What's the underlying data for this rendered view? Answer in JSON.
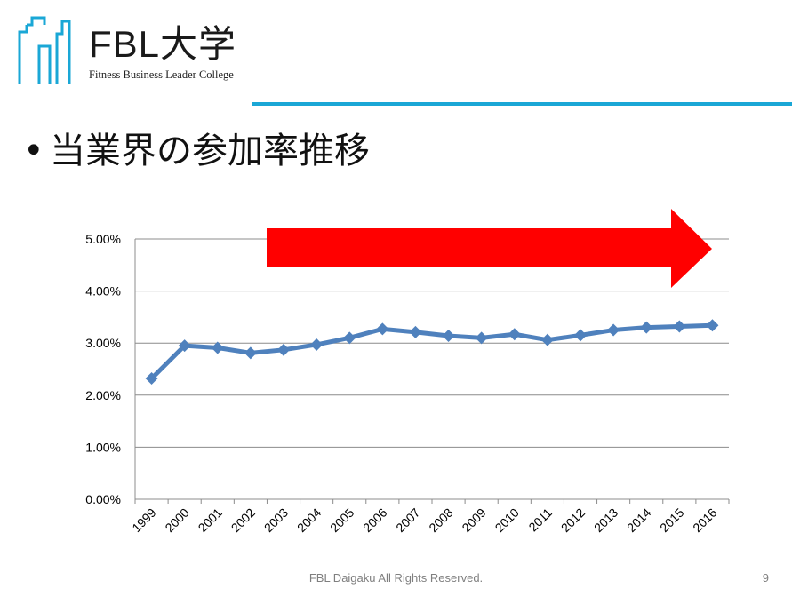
{
  "header": {
    "brand_name": "FBL大学",
    "brand_sub": "Fitness Business Leader College",
    "accent_color": "#1aa7d6"
  },
  "slide": {
    "bullet": "•",
    "title": "当業界の参加率推移"
  },
  "chart_data": {
    "type": "line",
    "categories": [
      "1999",
      "2000",
      "2001",
      "2002",
      "2003",
      "2004",
      "2005",
      "2006",
      "2007",
      "2008",
      "2009",
      "2010",
      "2011",
      "2012",
      "2013",
      "2014",
      "2015",
      "2016"
    ],
    "series": [
      {
        "values": [
          2.32,
          2.95,
          2.91,
          2.81,
          2.87,
          2.97,
          3.1,
          3.27,
          3.21,
          3.14,
          3.1,
          3.17,
          3.06,
          3.15,
          3.25,
          3.3,
          3.32,
          3.34
        ],
        "color": "#4f81bd",
        "marker": "diamond"
      }
    ],
    "y_unit": "%",
    "ylim": [
      0,
      5
    ],
    "y_ticks": [
      "0.00%",
      "1.00%",
      "2.00%",
      "3.00%",
      "4.00%",
      "5.00%"
    ],
    "grid": "horizontal",
    "annotation": {
      "shape": "right-arrow",
      "color": "#ff0000"
    },
    "xlabel": "",
    "ylabel": ""
  },
  "footer": {
    "copyright": "FBL Daigaku All Rights Reserved.",
    "page": "9"
  }
}
